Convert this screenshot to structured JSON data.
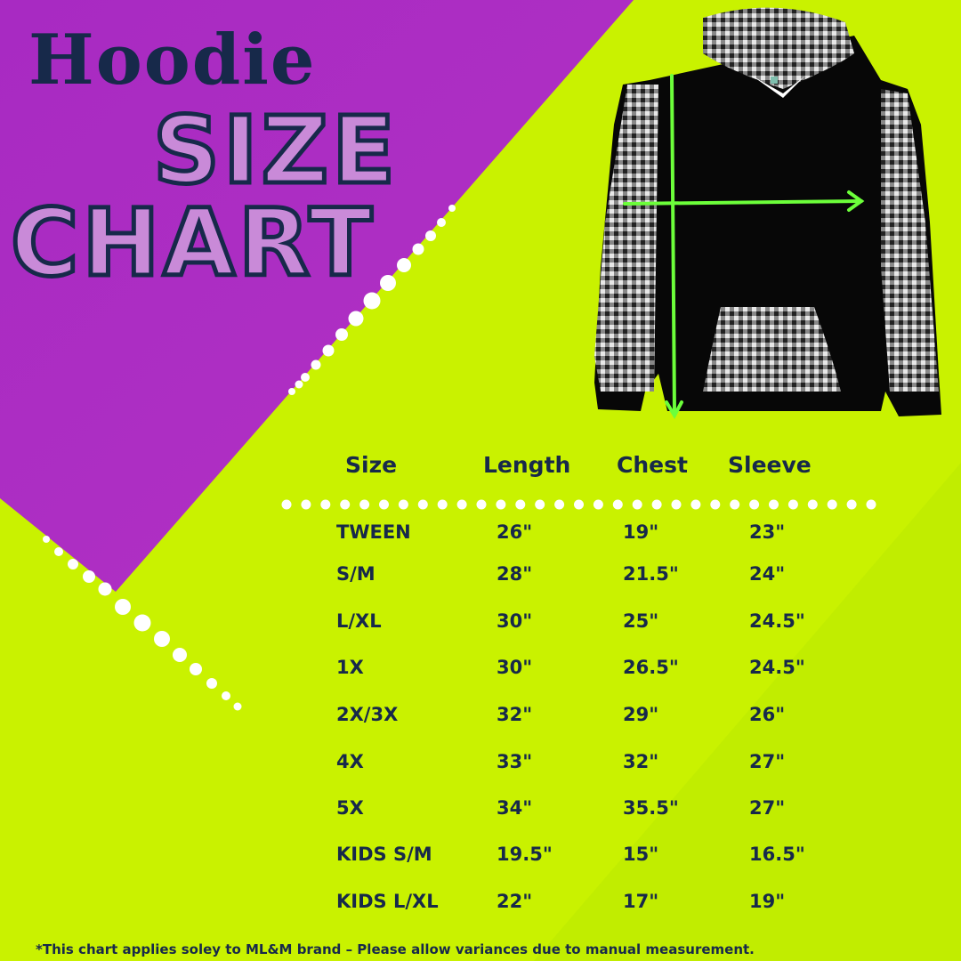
{
  "title": {
    "line1": "Hoodie",
    "line2": "SIZE",
    "line3": "CHART"
  },
  "colors": {
    "background": "#c9f200",
    "accent_purple": "#a62cc0",
    "text": "#17294a",
    "measure_arrow": "#6cff3a"
  },
  "image": {
    "subject": "hoodie with gingham sleeves, hood and pocket",
    "icons": [
      "length-arrow-icon",
      "chest-arrow-icon"
    ]
  },
  "table": {
    "headers": [
      "Size",
      "Length",
      "Chest",
      "Sleeve"
    ],
    "rows": [
      [
        "TWEEN",
        "26\"",
        "19\"",
        "23\""
      ],
      [
        "S/M",
        "28\"",
        "21.5\"",
        "24\""
      ],
      [
        "L/XL",
        "30\"",
        "25\"",
        "24.5\""
      ],
      [
        "1X",
        "30\"",
        "26.5\"",
        "24.5\""
      ],
      [
        "2X/3X",
        "32\"",
        "29\"",
        "26\""
      ],
      [
        "4X",
        "33\"",
        "32\"",
        "27\""
      ],
      [
        "5X",
        "34\"",
        "35.5\"",
        "27\""
      ],
      [
        "KIDS S/M",
        "19.5\"",
        "15\"",
        "16.5\""
      ],
      [
        "KIDS L/XL",
        "22\"",
        "17\"",
        "19\""
      ]
    ]
  },
  "footer": "*This chart  applies soley to ML&M brand  – Please allow  variances due to manual measurement."
}
